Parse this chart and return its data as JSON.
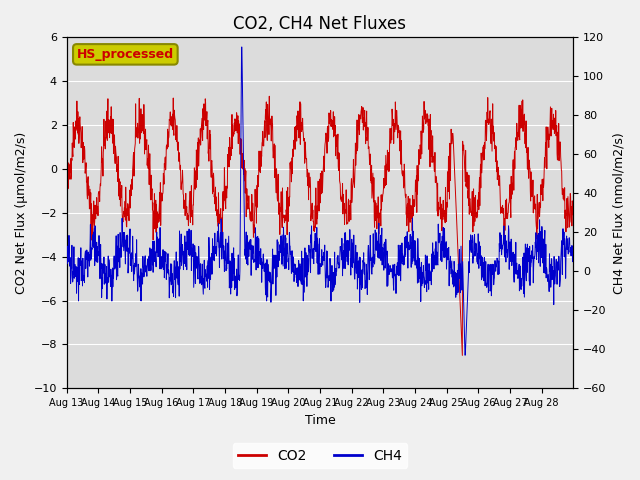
{
  "title": "CO2, CH4 Net Fluxes",
  "xlabel": "Time",
  "ylabel_left": "CO2 Net Flux (μmol/m2/s)",
  "ylabel_right": "CH4 Net Flux (nmol/m2/s)",
  "ylim_left": [
    -10,
    6
  ],
  "ylim_right": [
    -60,
    120
  ],
  "yticks_left": [
    -10,
    -8,
    -6,
    -4,
    -2,
    0,
    2,
    4,
    6
  ],
  "yticks_right": [
    -60,
    -40,
    -20,
    0,
    20,
    40,
    60,
    80,
    100,
    120
  ],
  "xticklabels": [
    "Aug 13",
    "Aug 14",
    "Aug 15",
    "Aug 16",
    "Aug 17",
    "Aug 18",
    "Aug 19",
    "Aug 20",
    "Aug 21",
    "Aug 22",
    "Aug 23",
    "Aug 24",
    "Aug 25",
    "Aug 26",
    "Aug 27",
    "Aug 28"
  ],
  "co2_color": "#cc0000",
  "ch4_color": "#0000cc",
  "legend_label": "HS_processed",
  "legend_box_facecolor": "#cccc00",
  "legend_box_edgecolor": "#888800",
  "legend_text_color": "#cc0000",
  "plot_bg_color": "#dcdcdc",
  "fig_bg_color": "#f0f0f0",
  "grid_color": "#ffffff",
  "title_fontsize": 12,
  "axis_label_fontsize": 9,
  "tick_fontsize": 8,
  "n_points_per_day": 96,
  "n_days": 16,
  "seed": 42
}
